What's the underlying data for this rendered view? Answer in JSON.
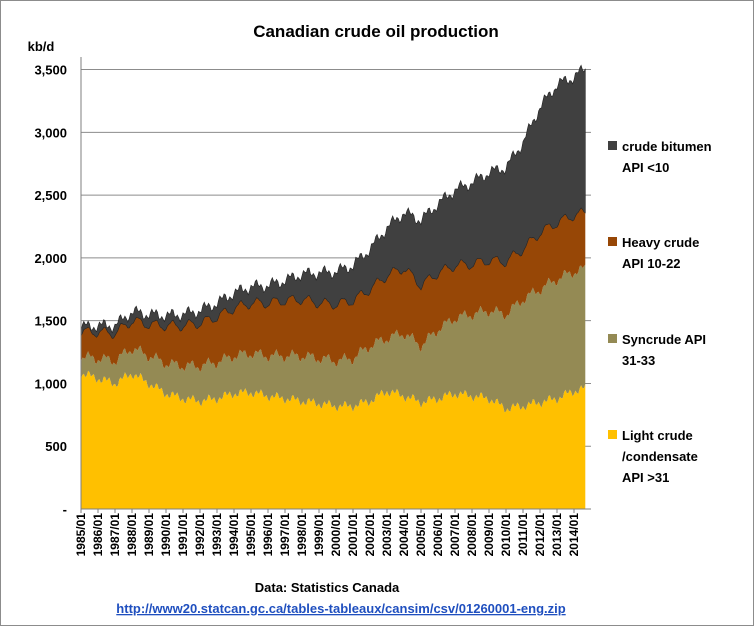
{
  "chart_data": {
    "type": "area",
    "stacked": true,
    "title": "Canadian  crude  oil  production",
    "ylabel": "kb/d",
    "xlabel": "",
    "ylim": [
      0,
      3600
    ],
    "yticks": [
      0,
      500,
      1000,
      1500,
      2000,
      2500,
      3000,
      3500
    ],
    "ytick_labels": [
      "-",
      "500",
      "1,000",
      "1,500",
      "2,000",
      "2,500",
      "3,000",
      "3,500"
    ],
    "x_range": [
      "1985-01",
      "2015-01"
    ],
    "x_tick_labels": [
      "1985/01",
      "1986/01",
      "1987/01",
      "1988/01",
      "1989/01",
      "1990/01",
      "1991/01",
      "1992/01",
      "1993/01",
      "1994/01",
      "1995/01",
      "1996/01",
      "1997/01",
      "1998/01",
      "1999/01",
      "2000/01",
      "2001/01",
      "2002/01",
      "2003/01",
      "2004/01",
      "2005/01",
      "2006/01",
      "2007/01",
      "2008/01",
      "2009/01",
      "2010/01",
      "2011/01",
      "2012/01",
      "2013/01",
      "2014/01"
    ],
    "grid": true,
    "legend_placement": "right",
    "series": [
      {
        "name": "Light crude /condensate API >31",
        "legend_lines": [
          "Light crude",
          "/condensate",
          "API >31"
        ],
        "color": "#ffc000",
        "x": [
          "1985-01",
          "1986-01",
          "1987-01",
          "1988-01",
          "1989-01",
          "1990-01",
          "1991-01",
          "1992-01",
          "1993-01",
          "1994-01",
          "1995-01",
          "1996-01",
          "1997-01",
          "1998-01",
          "1999-01",
          "2000-01",
          "2001-01",
          "2002-01",
          "2003-01",
          "2004-01",
          "2005-01",
          "2006-01",
          "2007-01",
          "2008-01",
          "2009-01",
          "2010-01",
          "2011-01",
          "2012-01",
          "2013-01",
          "2014-01",
          "2014-09"
        ],
        "values": [
          1080,
          1040,
          1000,
          1080,
          1000,
          920,
          880,
          860,
          880,
          920,
          930,
          900,
          880,
          860,
          840,
          820,
          820,
          860,
          940,
          900,
          850,
          880,
          920,
          900,
          880,
          800,
          820,
          850,
          880,
          940,
          960
        ]
      },
      {
        "name": "Syncrude API 31-33",
        "legend_lines": [
          "Syncrude  API",
          "31-33"
        ],
        "color": "#948a54",
        "x": [
          "1985-01",
          "1986-01",
          "1987-01",
          "1988-01",
          "1989-01",
          "1990-01",
          "1991-01",
          "1992-01",
          "1993-01",
          "1994-01",
          "1995-01",
          "1996-01",
          "1997-01",
          "1998-01",
          "1999-01",
          "2000-01",
          "2001-01",
          "2002-01",
          "2003-01",
          "2004-01",
          "2005-01",
          "2006-01",
          "2007-01",
          "2008-01",
          "2009-01",
          "2010-01",
          "2011-01",
          "2012-01",
          "2013-01",
          "2014-01",
          "2014-09"
        ],
        "values": [
          130,
          160,
          180,
          200,
          220,
          240,
          260,
          280,
          290,
          300,
          310,
          320,
          340,
          360,
          360,
          360,
          380,
          440,
          420,
          500,
          450,
          550,
          600,
          650,
          700,
          750,
          850,
          900,
          950,
          950,
          950
        ]
      },
      {
        "name": "Heavy crude API 10-22",
        "legend_lines": [
          "Heavy crude",
          "API 10-22"
        ],
        "color": "#974706",
        "x": [
          "1985-01",
          "1986-01",
          "1987-01",
          "1988-01",
          "1989-01",
          "1990-01",
          "1991-01",
          "1992-01",
          "1993-01",
          "1994-01",
          "1995-01",
          "1996-01",
          "1997-01",
          "1998-01",
          "1999-01",
          "2000-01",
          "2001-01",
          "2002-01",
          "2003-01",
          "2004-01",
          "2005-01",
          "2006-01",
          "2007-01",
          "2008-01",
          "2009-01",
          "2010-01",
          "2011-01",
          "2012-01",
          "2013-01",
          "2014-01",
          "2014-09"
        ],
        "values": [
          200,
          210,
          220,
          220,
          250,
          300,
          320,
          340,
          360,
          380,
          400,
          420,
          440,
          450,
          440,
          450,
          460,
          450,
          500,
          520,
          480,
          450,
          420,
          400,
          400,
          420,
          400,
          450,
          450,
          450,
          450
        ]
      },
      {
        "name": "crude bitumen API <10",
        "legend_lines": [
          "crude bitumen",
          "API <10"
        ],
        "color": "#404040",
        "x": [
          "1985-01",
          "1986-01",
          "1987-01",
          "1988-01",
          "1989-01",
          "1990-01",
          "1991-01",
          "1992-01",
          "1993-01",
          "1994-01",
          "1995-01",
          "1996-01",
          "1997-01",
          "1998-01",
          "1999-01",
          "2000-01",
          "2001-01",
          "2002-01",
          "2003-01",
          "2004-01",
          "2005-01",
          "2006-01",
          "2007-01",
          "2008-01",
          "2009-01",
          "2010-01",
          "2011-01",
          "2012-01",
          "2013-01",
          "2014-01",
          "2014-09"
        ],
        "values": [
          40,
          50,
          60,
          70,
          80,
          80,
          90,
          100,
          110,
          120,
          130,
          140,
          160,
          200,
          240,
          260,
          280,
          320,
          380,
          440,
          520,
          550,
          600,
          650,
          700,
          750,
          850,
          1000,
          1100,
          1100,
          1150
        ]
      }
    ],
    "source_label": "Data: Statistics Canada",
    "source_url": "http://www20.statcan.gc.ca/tables-tableaux/cansim/csv/01260001-eng.zip"
  }
}
